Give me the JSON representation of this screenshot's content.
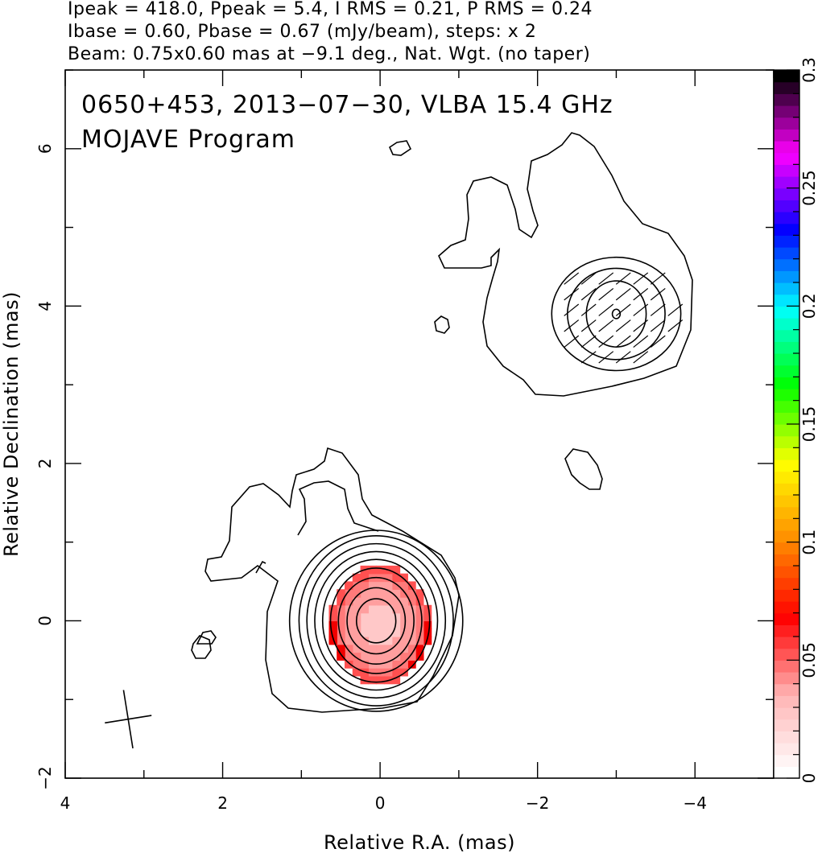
{
  "header": {
    "line1": "Ipeak = 418.0, Ppeak = 5.4, I RMS = 0.21, P RMS = 0.24",
    "line2": "Ibase = 0.60, Pbase = 0.67 (mJy/beam), steps: x 2",
    "line3": "Beam: 0.75x0.60 mas at −9.1 deg., Nat. Wgt. (no taper)"
  },
  "annotation": {
    "line1": "0650+453, 2013−07−30, VLBA 15.4 GHz",
    "line2": "MOJAVE Program"
  },
  "chart_data": {
    "type": "heatmap",
    "title": "0650+453, 2013−07−30, VLBA 15.4 GHz",
    "subtitle": "MOJAVE Program",
    "xlabel": "Relative R.A. (mas)",
    "ylabel": "Relative Declination (mas)",
    "xlim": [
      4,
      -5
    ],
    "ylim": [
      -2,
      7
    ],
    "x_ticks": [
      4,
      2,
      0,
      -2,
      -4
    ],
    "x_tick_labels": [
      "4",
      "2",
      "0",
      "−2",
      "−4"
    ],
    "y_ticks": [
      -2,
      0,
      2,
      4,
      6
    ],
    "y_tick_labels": [
      "−2",
      "0",
      "2",
      "4",
      "6"
    ],
    "colorbar": {
      "range": [
        0,
        0.3
      ],
      "ticks": [
        0,
        0.05,
        0.1,
        0.15,
        0.2,
        0.25,
        0.3
      ],
      "tick_labels": [
        "0",
        "0.05",
        "0.1",
        "0.15",
        "0.2",
        "0.25",
        "0.3"
      ],
      "colormap": [
        "#ffffff",
        "#ffb4b4",
        "#ff0000",
        "#ff8c00",
        "#ffff00",
        "#00ff00",
        "#00ffff",
        "#0000ff",
        "#ff00ff",
        "#000000"
      ]
    },
    "beam": {
      "major_mas": 0.75,
      "minor_mas": 0.6,
      "pa_deg": -9.1,
      "center": [
        3.2,
        -1.25
      ]
    },
    "contours": [
      {
        "name": "core",
        "center": [
          0.05,
          0.0
        ],
        "radii": [
          [
            0.25,
            0.28
          ],
          [
            0.37,
            0.42
          ],
          [
            0.48,
            0.55
          ],
          [
            0.58,
            0.67
          ],
          [
            0.68,
            0.78
          ],
          [
            0.78,
            0.88
          ],
          [
            0.88,
            0.98
          ],
          [
            0.98,
            1.08
          ],
          [
            1.1,
            1.15
          ]
        ]
      },
      {
        "name": "jet-knot",
        "center": [
          -3.0,
          3.9
        ],
        "radii": [
          [
            0.05,
            0.06
          ],
          [
            0.38,
            0.42
          ],
          [
            0.62,
            0.58
          ],
          [
            0.82,
            0.72
          ]
        ]
      }
    ],
    "polarization_fill": {
      "peak_fraction": 0.06,
      "center": [
        0.0,
        -0.05
      ],
      "extent_mas": [
        0.65,
        0.75
      ]
    }
  }
}
